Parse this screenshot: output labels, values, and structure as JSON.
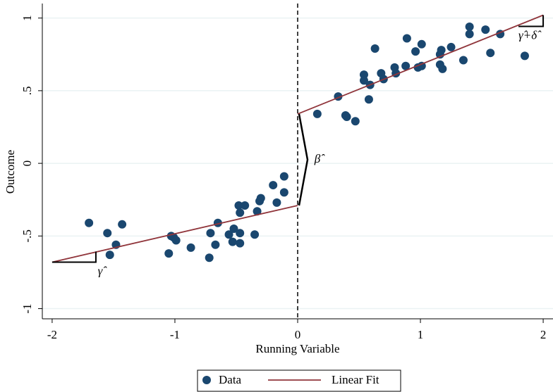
{
  "chart_data": {
    "type": "scatter",
    "xlabel": "Running Variable",
    "ylabel": "Outcome",
    "xlim": [
      -2.08,
      2.08
    ],
    "ylim": [
      -1.07,
      1.1
    ],
    "xticks": [
      -2,
      -1,
      0,
      1,
      2
    ],
    "yticks": [
      -1,
      {
        "value": -0.5,
        "label": "-.5"
      },
      0,
      {
        "value": 0.5,
        "label": ".5"
      },
      1
    ],
    "grid": true,
    "cutoff": 0,
    "annotations": [
      "γ̂",
      "β̂",
      "γ̂+δ̂"
    ],
    "series": [
      {
        "name": "Data",
        "type": "scatter",
        "color": "#1a476f",
        "x": [
          -1.7,
          -1.55,
          -1.43,
          -1.48,
          -1.53,
          -1.05,
          -1.03,
          -1.01,
          -0.99,
          -0.87,
          -0.72,
          -0.71,
          -0.67,
          -0.65,
          -0.56,
          -0.53,
          -0.52,
          -0.47,
          -0.47,
          -0.47,
          -0.48,
          -0.43,
          -0.35,
          -0.33,
          -0.31,
          -0.3,
          -0.2,
          -0.17,
          -0.11,
          -0.11,
          0.16,
          0.33,
          0.39,
          0.4,
          0.47,
          0.54,
          0.54,
          0.58,
          0.59,
          0.63,
          0.68,
          0.7,
          0.8,
          0.79,
          0.88,
          0.89,
          0.96,
          0.98,
          1.01,
          1.01,
          1.16,
          1.17,
          1.16,
          1.18,
          1.25,
          1.35,
          1.4,
          1.4,
          1.53,
          1.57,
          1.65,
          1.85
        ],
        "values": [
          -0.41,
          -0.48,
          -0.42,
          -0.56,
          -0.63,
          -0.62,
          -0.5,
          -0.51,
          -0.53,
          -0.58,
          -0.65,
          -0.48,
          -0.56,
          -0.41,
          -0.49,
          -0.54,
          -0.45,
          -0.48,
          -0.55,
          -0.34,
          -0.29,
          -0.29,
          -0.49,
          -0.33,
          -0.26,
          -0.24,
          -0.15,
          -0.27,
          -0.2,
          -0.09,
          0.34,
          0.46,
          0.33,
          0.32,
          0.29,
          0.61,
          0.57,
          0.44,
          0.54,
          0.79,
          0.62,
          0.58,
          0.62,
          0.66,
          0.67,
          0.86,
          0.77,
          0.66,
          0.67,
          0.82,
          0.75,
          0.78,
          0.68,
          0.65,
          0.8,
          0.71,
          0.94,
          0.89,
          0.92,
          0.76,
          0.89,
          0.74
        ]
      },
      {
        "name": "Linear Fit",
        "type": "line",
        "color": "#90353b",
        "x": [
          -2,
          0,
          null,
          0,
          2
        ],
        "values": [
          -0.68,
          -0.29,
          null,
          0.34,
          1.02
        ]
      }
    ]
  }
}
